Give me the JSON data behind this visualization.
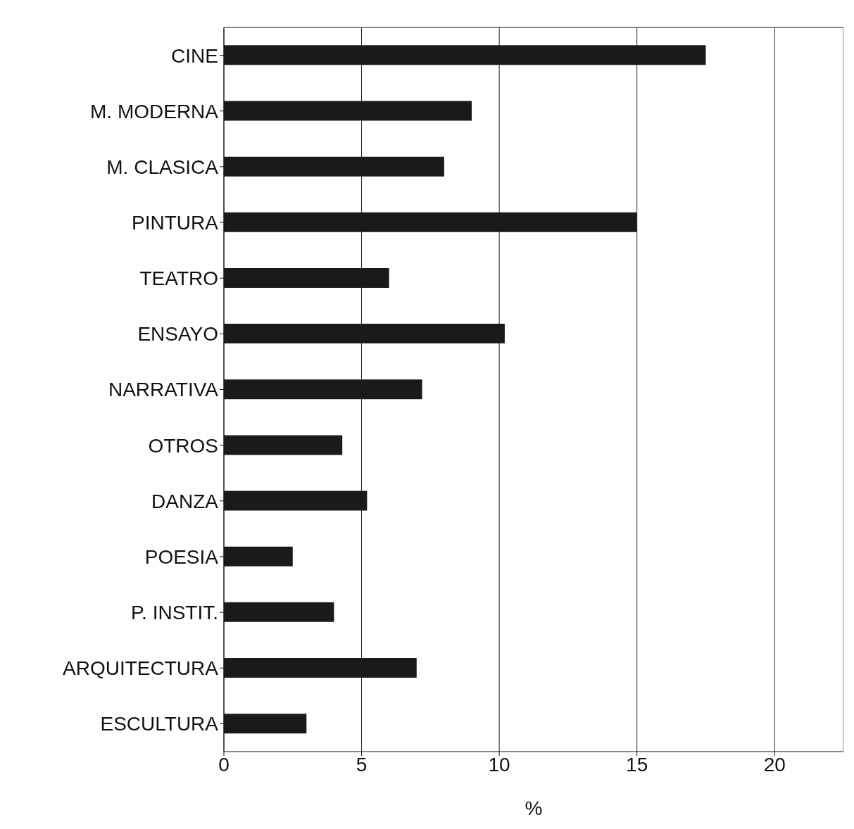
{
  "chart_data": {
    "type": "bar",
    "orientation": "horizontal",
    "xlabel": "%",
    "categories": [
      "CINE",
      "M. MODERNA",
      "M. CLASICA",
      "PINTURA",
      "TEATRO",
      "ENSAYO",
      "NARRATIVA",
      "OTROS",
      "DANZA",
      "POESIA",
      "P. INSTIT.",
      "ARQUITECTURA",
      "ESCULTURA"
    ],
    "values": [
      17.5,
      9.0,
      8.0,
      15.0,
      6.0,
      10.2,
      7.2,
      4.3,
      5.2,
      2.5,
      4.0,
      7.0,
      3.0
    ],
    "color": "#1a1a1a",
    "xlim": [
      0,
      22.5
    ],
    "xticks": [
      0,
      5,
      10,
      15,
      20
    ],
    "grid": "x"
  }
}
